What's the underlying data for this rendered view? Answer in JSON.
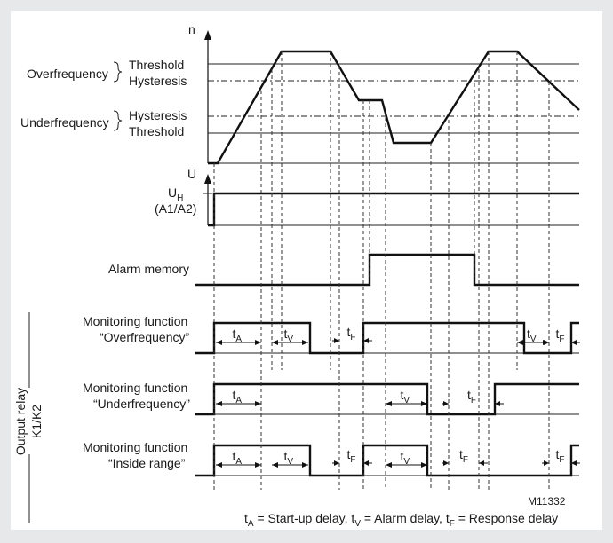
{
  "labels": {
    "axis_n": "n",
    "axis_u": "U",
    "overfrequency": "Overfrequency",
    "underfrequency": "Underfrequency",
    "threshold": "Threshold",
    "hysteresis": "Hysteresis",
    "uh_main": "U",
    "uh_sub": "H",
    "uh_pins": "(A1/A2)",
    "alarm_memory": "Alarm memory",
    "mf_line1": "Monitoring function",
    "mf_over": "“Overfrequency”",
    "mf_under": "“Underfrequency”",
    "mf_inside": "“Inside range”",
    "output_relay_1": "Output relay",
    "output_relay_2": "K1/K2",
    "figure_id": "M11332"
  },
  "timing": {
    "t": "t",
    "A": "A",
    "V": "V",
    "F": "F"
  },
  "legend": {
    "ta_sym": "t",
    "ta_sub": "A",
    "ta_text": " = Start-up delay, ",
    "tv_sym": "t",
    "tv_sub": "V",
    "tv_text": " = Alarm delay, ",
    "tf_sym": "t",
    "tf_sub": "F",
    "tf_text": " = Response delay"
  },
  "colors": {
    "page_background": "#e7e8ea",
    "panel_background": "#ffffff",
    "line": "#111111"
  }
}
